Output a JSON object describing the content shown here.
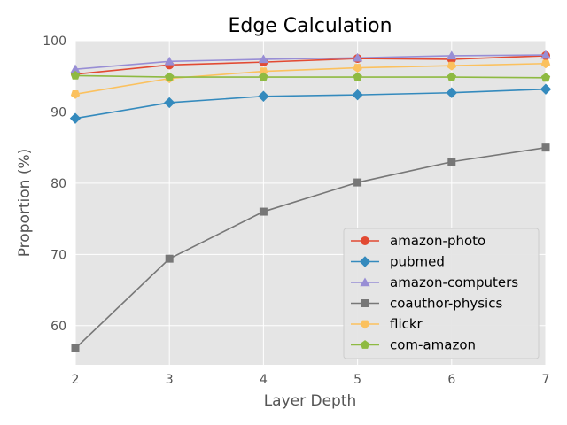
{
  "chart_data": {
    "type": "line",
    "title": "Edge Calculation",
    "xlabel": "Layer Depth",
    "ylabel": "Proportion (%)",
    "x": [
      2,
      3,
      4,
      5,
      6,
      7
    ],
    "xlim": [
      2,
      7
    ],
    "ylim": [
      54.5,
      100
    ],
    "xticks": [
      "2",
      "3",
      "4",
      "5",
      "6",
      "7"
    ],
    "yticks": [
      "60",
      "70",
      "80",
      "90",
      "100"
    ],
    "grid": true,
    "legend_position": "lower-right",
    "series": [
      {
        "name": "amazon-photo",
        "color": "#E24A33",
        "marker": "circle",
        "values": [
          95.3,
          96.6,
          97.0,
          97.5,
          97.4,
          97.9
        ]
      },
      {
        "name": "pubmed",
        "color": "#348ABD",
        "marker": "diamond",
        "values": [
          89.1,
          91.3,
          92.2,
          92.4,
          92.7,
          93.2
        ]
      },
      {
        "name": "amazon-computers",
        "color": "#988ED5",
        "marker": "triangle",
        "values": [
          96.0,
          97.1,
          97.4,
          97.6,
          97.9,
          98.0
        ]
      },
      {
        "name": "coauthor-physics",
        "color": "#777777",
        "marker": "square",
        "values": [
          56.8,
          69.4,
          76.0,
          80.1,
          83.0,
          85.0
        ]
      },
      {
        "name": "flickr",
        "color": "#FBC15E",
        "marker": "pentagon-down",
        "values": [
          92.5,
          94.7,
          95.7,
          96.2,
          96.5,
          96.8
        ]
      },
      {
        "name": "com-amazon",
        "color": "#8EBA42",
        "marker": "pentagon",
        "values": [
          95.1,
          94.9,
          94.9,
          94.9,
          94.9,
          94.8
        ]
      }
    ]
  }
}
